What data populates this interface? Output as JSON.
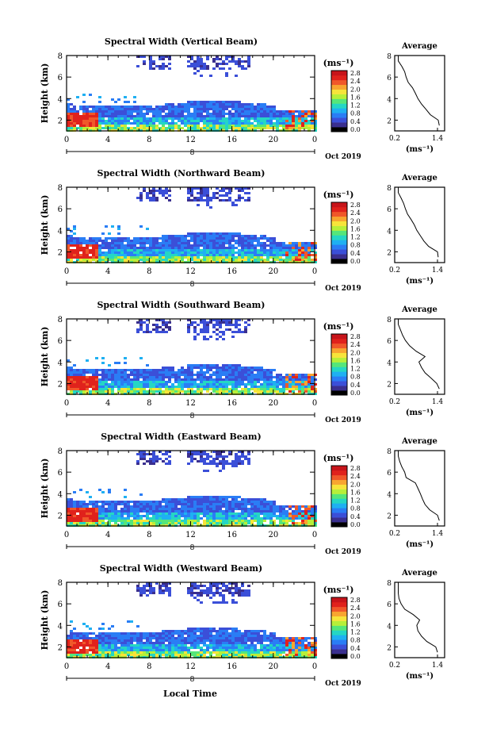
{
  "figure": {
    "xlabel": "Local Time",
    "date_label": "Oct 2019",
    "day_label": "8"
  },
  "colorbar": {
    "unit_label": "(ms⁻¹)",
    "ticks": [
      "2.8",
      "2.4",
      "2.0",
      "1.6",
      "1.2",
      "0.8",
      "0.4",
      "0.0"
    ],
    "colors": [
      "#000000",
      "#3a2f8f",
      "#3b4fd8",
      "#2a7df5",
      "#1fb0f2",
      "#25d6c4",
      "#55e67a",
      "#b7ef39",
      "#f7e43a",
      "#f8a530",
      "#f0582a",
      "#e0221c",
      "#c7141a"
    ]
  },
  "chart_data": [
    {
      "type": "heatmap",
      "title": "Spectral Width (Vertical Beam)",
      "ylabel": "Height (km)",
      "x_ticks": [
        "0",
        "4",
        "8",
        "12",
        "16",
        "20",
        "0"
      ],
      "xlim": [
        0,
        24
      ],
      "y_ticks": [
        "2",
        "4",
        "6",
        "8"
      ],
      "ylim": [
        1,
        8
      ],
      "colorbar_range": [
        0.0,
        2.8
      ],
      "average_profile": {
        "title": "Average",
        "xlabel": "(ms⁻¹)",
        "x_ticks": [
          "0.2",
          "1.4"
        ],
        "y_ticks": [
          "2",
          "4",
          "6",
          "8"
        ],
        "xlim": [
          0.2,
          1.6
        ],
        "ylim": [
          1,
          8
        ],
        "x": [
          1.45,
          1.42,
          1.2,
          1.08,
          0.95,
          0.85,
          0.78,
          0.7,
          0.58,
          0.52,
          0.48,
          0.4,
          0.3,
          0.3
        ],
        "y": [
          1.5,
          2.0,
          2.5,
          3.0,
          3.5,
          4.0,
          4.5,
          5.0,
          5.5,
          6.0,
          6.5,
          7.0,
          7.5,
          8.0
        ]
      }
    },
    {
      "type": "heatmap",
      "title": "Spectral Width (Northward Beam)",
      "ylabel": "Height (km)",
      "x_ticks": [
        "0",
        "4",
        "8",
        "12",
        "16",
        "20",
        "0"
      ],
      "xlim": [
        0,
        24
      ],
      "y_ticks": [
        "2",
        "4",
        "6",
        "8"
      ],
      "ylim": [
        1,
        8
      ],
      "colorbar_range": [
        0.0,
        2.8
      ],
      "average_profile": {
        "title": "Average",
        "xlabel": "(ms⁻¹)",
        "x_ticks": [
          "0.2",
          "1.4"
        ],
        "y_ticks": [
          "2",
          "4",
          "6",
          "8"
        ],
        "xlim": [
          0.2,
          1.6
        ],
        "ylim": [
          1,
          8
        ],
        "x": [
          1.42,
          1.4,
          1.15,
          1.02,
          0.92,
          0.82,
          0.75,
          0.66,
          0.56,
          0.5,
          0.45,
          0.38,
          0.3,
          0.3
        ],
        "y": [
          1.5,
          2.0,
          2.5,
          3.0,
          3.5,
          4.0,
          4.5,
          5.0,
          5.5,
          6.0,
          6.5,
          7.0,
          7.5,
          8.0
        ]
      }
    },
    {
      "type": "heatmap",
      "title": "Spectral Width (Southward Beam)",
      "ylabel": "Height (km)",
      "x_ticks": [
        "0",
        "4",
        "8",
        "12",
        "16",
        "20",
        "0"
      ],
      "xlim": [
        0,
        24
      ],
      "y_ticks": [
        "2",
        "4",
        "6",
        "8"
      ],
      "ylim": [
        1,
        8
      ],
      "colorbar_range": [
        0.0,
        2.8
      ],
      "average_profile": {
        "title": "Average",
        "xlabel": "(ms⁻¹)",
        "x_ticks": [
          "0.2",
          "1.4"
        ],
        "y_ticks": [
          "2",
          "4",
          "6",
          "8"
        ],
        "xlim": [
          0.2,
          1.6
        ],
        "ylim": [
          1,
          8
        ],
        "x": [
          1.45,
          1.38,
          1.22,
          1.05,
          0.95,
          0.88,
          1.05,
          0.8,
          0.62,
          0.5,
          0.42,
          0.36,
          0.3,
          0.3
        ],
        "y": [
          1.5,
          2.0,
          2.5,
          3.0,
          3.5,
          4.0,
          4.5,
          5.0,
          5.5,
          6.0,
          6.5,
          7.0,
          7.5,
          8.0
        ]
      }
    },
    {
      "type": "heatmap",
      "title": "Spectral Width (Eastward Beam)",
      "ylabel": "Height (km)",
      "x_ticks": [
        "0",
        "4",
        "8",
        "12",
        "16",
        "20",
        "0"
      ],
      "xlim": [
        0,
        24
      ],
      "y_ticks": [
        "2",
        "4",
        "6",
        "8"
      ],
      "ylim": [
        1,
        8
      ],
      "colorbar_range": [
        0.0,
        2.8
      ],
      "average_profile": {
        "title": "Average",
        "xlabel": "(ms⁻¹)",
        "x_ticks": [
          "0.2",
          "1.4"
        ],
        "y_ticks": [
          "2",
          "4",
          "6",
          "8"
        ],
        "xlim": [
          0.2,
          1.6
        ],
        "ylim": [
          1,
          8
        ],
        "x": [
          1.45,
          1.4,
          1.18,
          1.05,
          0.98,
          0.92,
          0.85,
          0.78,
          0.52,
          0.48,
          0.4,
          0.34,
          0.3,
          0.3
        ],
        "y": [
          1.5,
          2.0,
          2.5,
          3.0,
          3.5,
          4.0,
          4.5,
          5.0,
          5.5,
          6.0,
          6.5,
          7.0,
          7.5,
          8.0
        ]
      }
    },
    {
      "type": "heatmap",
      "title": "Spectral Width (Westward Beam)",
      "ylabel": "Height (km)",
      "x_ticks": [
        "0",
        "4",
        "8",
        "12",
        "16",
        "20",
        "0"
      ],
      "xlim": [
        0,
        24
      ],
      "y_ticks": [
        "2",
        "4",
        "6",
        "8"
      ],
      "ylim": [
        1,
        8
      ],
      "colorbar_range": [
        0.0,
        2.8
      ],
      "average_profile": {
        "title": "Average",
        "xlabel": "(ms⁻¹)",
        "x_ticks": [
          "0.2",
          "1.4"
        ],
        "y_ticks": [
          "2",
          "4",
          "6",
          "8"
        ],
        "xlim": [
          0.2,
          1.6
        ],
        "ylim": [
          1,
          8
        ],
        "x": [
          1.4,
          1.35,
          1.1,
          0.95,
          0.85,
          0.82,
          0.9,
          0.72,
          0.48,
          0.38,
          0.32,
          0.3,
          0.3,
          0.3
        ],
        "y": [
          1.5,
          2.0,
          2.5,
          3.0,
          3.5,
          4.0,
          4.5,
          5.0,
          5.5,
          6.0,
          6.5,
          7.0,
          7.5,
          8.0
        ]
      }
    }
  ]
}
